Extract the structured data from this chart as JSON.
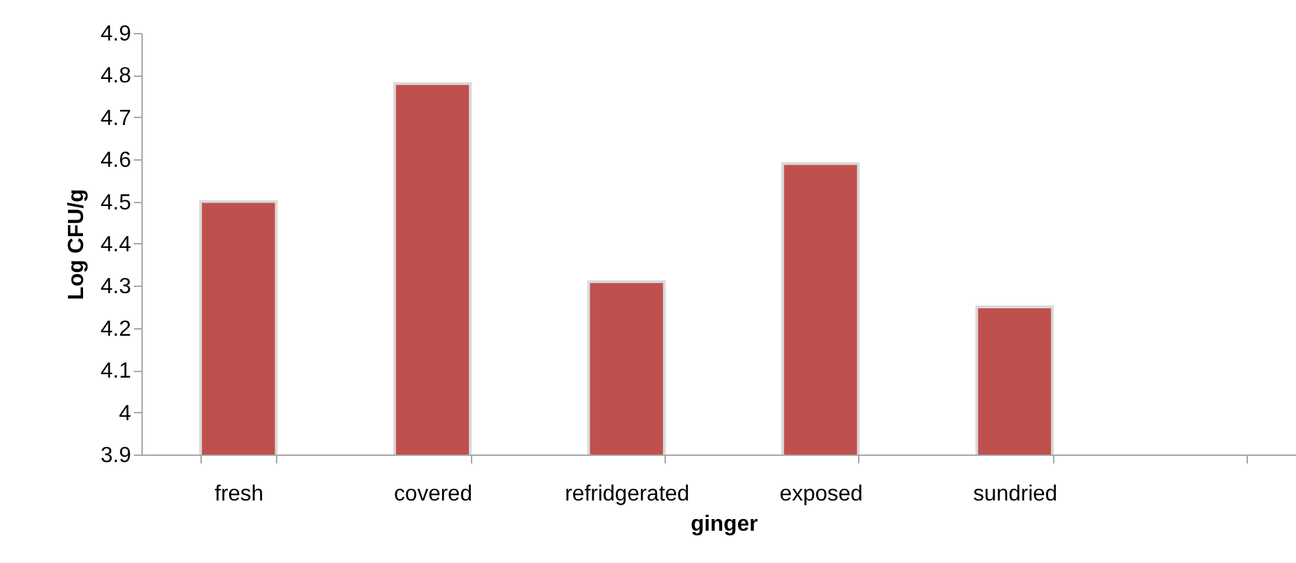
{
  "chart_data": {
    "type": "bar",
    "xlabel": "ginger",
    "ylabel": "Log CFU/g",
    "categories": [
      "fresh",
      "covered",
      "refridgerated",
      "exposed",
      "sundried",
      null
    ],
    "values": [
      4.5,
      4.78,
      4.31,
      4.59,
      4.25,
      null
    ],
    "color": "#c0504d",
    "ylim": [
      3.9,
      4.9
    ],
    "yticks": [
      3.9,
      4,
      4.1,
      4.2,
      4.3,
      4.4,
      4.5,
      4.6,
      4.7,
      4.8,
      4.9
    ],
    "grid": false
  }
}
